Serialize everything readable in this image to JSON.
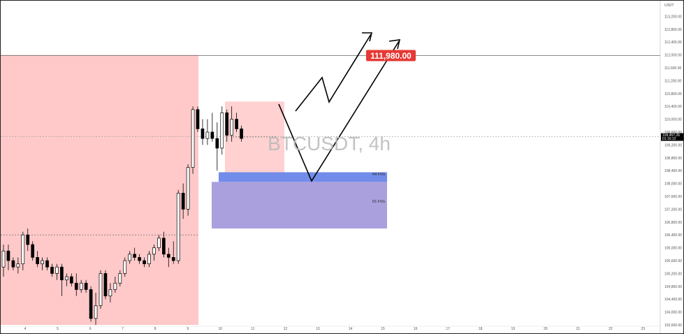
{
  "chart_data": {
    "type": "candlestick",
    "symbol_watermark": "BTCUSDT, 4h",
    "currency": "USDT",
    "ylim": [
      103600,
      113600
    ],
    "y_ticks": [
      "113,200.00",
      "112,800.00",
      "112,400.00",
      "112,000.00",
      "111,600.00",
      "111,200.00",
      "110,800.00",
      "110,400.00",
      "110,000.00",
      "109,600.00",
      "109,200.00",
      "108,800.00",
      "108,400.00",
      "108,000.00",
      "107,600.00",
      "107,200.00",
      "106,800.00",
      "106,400.00",
      "106,000.00",
      "105,600.00",
      "105,200.00",
      "104,800.00",
      "104,400.00",
      "104,000.00",
      "103,600.00"
    ],
    "y_tick_values": [
      113200,
      112800,
      112400,
      112000,
      111600,
      111200,
      110800,
      110400,
      110000,
      109600,
      109200,
      108800,
      108400,
      108000,
      107600,
      107200,
      106800,
      106400,
      106000,
      105600,
      105200,
      104800,
      104400,
      104000,
      103600
    ],
    "x_labels": [
      "4",
      "5",
      "6",
      "7",
      "8",
      "9",
      "10",
      "11",
      "12",
      "13",
      "14",
      "15",
      "16",
      "17",
      "18",
      "19",
      "20",
      "21",
      "22",
      "23"
    ],
    "current_price": {
      "value": 109457.26,
      "label": "109,457.26",
      "countdown": "01:16:12"
    },
    "target": {
      "label": "111,980.00",
      "value": 111980,
      "color": "#e53935"
    },
    "zones": {
      "h4_fvg": {
        "label": "H4 FVG",
        "top": 108350,
        "bottom": 108050,
        "color": "#6a86e8"
      },
      "d1_fvg": {
        "label": "D1 FVG",
        "top": 108050,
        "bottom": 106600,
        "color": "#9b8fd8"
      },
      "range_box": {
        "top": 112000,
        "bottom": 103600,
        "color": "#ffc9c9"
      },
      "consolidation_box": {
        "top": 110550,
        "bottom": 108350,
        "color": "#ffc9c9"
      }
    },
    "candles": [
      {
        "o": 105400,
        "h": 106100,
        "l": 105100,
        "c": 105900
      },
      {
        "o": 105900,
        "h": 106100,
        "l": 105300,
        "c": 105600
      },
      {
        "o": 105600,
        "h": 105700,
        "l": 105300,
        "c": 105400
      },
      {
        "o": 105400,
        "h": 105700,
        "l": 105200,
        "c": 105500
      },
      {
        "o": 105500,
        "h": 106500,
        "l": 105300,
        "c": 106400
      },
      {
        "o": 106400,
        "h": 106600,
        "l": 105900,
        "c": 106100
      },
      {
        "o": 106100,
        "h": 106200,
        "l": 105600,
        "c": 105700
      },
      {
        "o": 105700,
        "h": 105900,
        "l": 105400,
        "c": 105500
      },
      {
        "o": 105500,
        "h": 105700,
        "l": 105300,
        "c": 105600
      },
      {
        "o": 105600,
        "h": 105700,
        "l": 105300,
        "c": 105400
      },
      {
        "o": 105400,
        "h": 105500,
        "l": 105100,
        "c": 105200
      },
      {
        "o": 105200,
        "h": 105500,
        "l": 105000,
        "c": 105400
      },
      {
        "o": 105400,
        "h": 105500,
        "l": 104500,
        "c": 105000
      },
      {
        "o": 105000,
        "h": 105200,
        "l": 104800,
        "c": 105100
      },
      {
        "o": 105100,
        "h": 105200,
        "l": 104800,
        "c": 104900
      },
      {
        "o": 104900,
        "h": 105200,
        "l": 104500,
        "c": 104700
      },
      {
        "o": 104700,
        "h": 105000,
        "l": 104600,
        "c": 104900
      },
      {
        "o": 104900,
        "h": 105000,
        "l": 104600,
        "c": 104700
      },
      {
        "o": 104700,
        "h": 104800,
        "l": 103700,
        "c": 103800
      },
      {
        "o": 103800,
        "h": 104600,
        "l": 103600,
        "c": 104200
      },
      {
        "o": 104200,
        "h": 105300,
        "l": 104100,
        "c": 105200
      },
      {
        "o": 105200,
        "h": 105300,
        "l": 104400,
        "c": 104500
      },
      {
        "o": 104500,
        "h": 104900,
        "l": 104300,
        "c": 104700
      },
      {
        "o": 104700,
        "h": 105100,
        "l": 104600,
        "c": 104900
      },
      {
        "o": 104900,
        "h": 105300,
        "l": 104800,
        "c": 105200
      },
      {
        "o": 105200,
        "h": 105700,
        "l": 105100,
        "c": 105600
      },
      {
        "o": 105600,
        "h": 105900,
        "l": 105500,
        "c": 105800
      },
      {
        "o": 105800,
        "h": 106000,
        "l": 105600,
        "c": 105700
      },
      {
        "o": 105700,
        "h": 105800,
        "l": 105500,
        "c": 105600
      },
      {
        "o": 105600,
        "h": 105700,
        "l": 105400,
        "c": 105500
      },
      {
        "o": 105500,
        "h": 105900,
        "l": 105400,
        "c": 105800
      },
      {
        "o": 105800,
        "h": 106100,
        "l": 105600,
        "c": 106000
      },
      {
        "o": 106000,
        "h": 106400,
        "l": 105900,
        "c": 106300
      },
      {
        "o": 106300,
        "h": 106500,
        "l": 105700,
        "c": 105800
      },
      {
        "o": 105800,
        "h": 106000,
        "l": 105400,
        "c": 105700
      },
      {
        "o": 105700,
        "h": 106200,
        "l": 105500,
        "c": 105600
      },
      {
        "o": 105600,
        "h": 107800,
        "l": 105500,
        "c": 107700
      },
      {
        "o": 107700,
        "h": 108000,
        "l": 106900,
        "c": 107200
      },
      {
        "o": 107200,
        "h": 108600,
        "l": 107000,
        "c": 108500
      },
      {
        "o": 108500,
        "h": 110400,
        "l": 108300,
        "c": 110300
      },
      {
        "o": 110300,
        "h": 110400,
        "l": 109600,
        "c": 109700
      },
      {
        "o": 109700,
        "h": 110000,
        "l": 109200,
        "c": 109400
      },
      {
        "o": 109400,
        "h": 110000,
        "l": 109200,
        "c": 109600
      },
      {
        "o": 109600,
        "h": 110200,
        "l": 109300,
        "c": 109400
      },
      {
        "o": 109400,
        "h": 109900,
        "l": 108400,
        "c": 109100
      },
      {
        "o": 109100,
        "h": 110400,
        "l": 108900,
        "c": 110200
      },
      {
        "o": 110200,
        "h": 110300,
        "l": 109300,
        "c": 109500
      },
      {
        "o": 109500,
        "h": 110400,
        "l": 109300,
        "c": 110000
      },
      {
        "o": 110000,
        "h": 110200,
        "l": 109600,
        "c": 109700
      },
      {
        "o": 109700,
        "h": 109800,
        "l": 109300,
        "c": 109400
      }
    ],
    "grid": false,
    "legend": "none"
  }
}
